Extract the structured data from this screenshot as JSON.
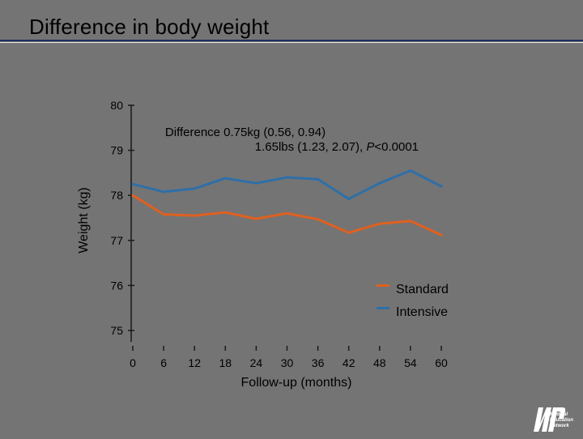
{
  "slide": {
    "title": "Difference in body weight"
  },
  "logo": {
    "line1": "Medical",
    "line2": "Education",
    "line3": "Network"
  },
  "chart_data": {
    "type": "line",
    "title": "",
    "xlabel": "Follow-up (months)",
    "ylabel": "Weight (kg)",
    "xlim": [
      0,
      60
    ],
    "ylim": [
      75,
      80
    ],
    "x_ticks": [
      0,
      6,
      12,
      18,
      24,
      30,
      36,
      42,
      48,
      54,
      60
    ],
    "y_ticks": [
      75,
      76,
      77,
      78,
      79,
      80
    ],
    "grid": false,
    "legend_position": "bottom-right",
    "annotation_line1": "Difference 0.75kg (0.56, 0.94)",
    "annotation_line2_prefix": "1.65lbs (1.23, 2.07), ",
    "annotation_p_label": "P",
    "annotation_p_value": "<0.0001",
    "series": [
      {
        "name": "Standard",
        "color": "#e06020",
        "x": [
          0,
          6,
          12,
          18,
          24,
          30,
          36,
          42,
          48,
          54,
          60
        ],
        "y": [
          78.0,
          77.58,
          77.55,
          77.62,
          77.48,
          77.6,
          77.47,
          77.17,
          77.37,
          77.43,
          77.12
        ]
      },
      {
        "name": "Intensive",
        "color": "#2e6fa8",
        "x": [
          0,
          6,
          12,
          18,
          24,
          30,
          36,
          42,
          48,
          54,
          60
        ],
        "y": [
          78.25,
          78.08,
          78.15,
          78.38,
          78.27,
          78.4,
          78.36,
          77.92,
          78.27,
          78.55,
          78.2
        ]
      }
    ]
  }
}
